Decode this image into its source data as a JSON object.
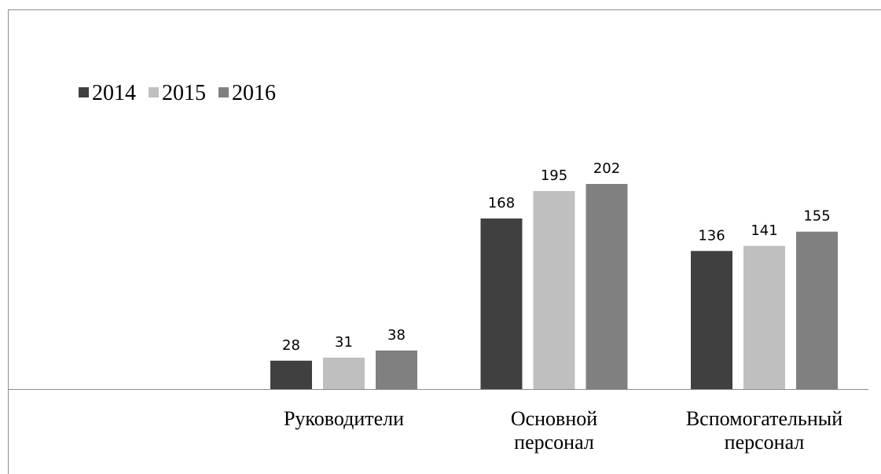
{
  "chart_data": {
    "type": "bar",
    "categories": [
      null,
      "Руководители",
      "Основной персонал",
      "Вспомогательный персонал"
    ],
    "series": [
      {
        "name": "2014",
        "color": "#404040",
        "values": [
          null,
          28,
          168,
          136
        ]
      },
      {
        "name": "2015",
        "color": "#bfbfbf",
        "values": [
          null,
          31,
          195,
          141
        ]
      },
      {
        "name": "2016",
        "color": "#808080",
        "values": [
          null,
          38,
          202,
          155
        ]
      }
    ],
    "legend": "top-left"
  }
}
